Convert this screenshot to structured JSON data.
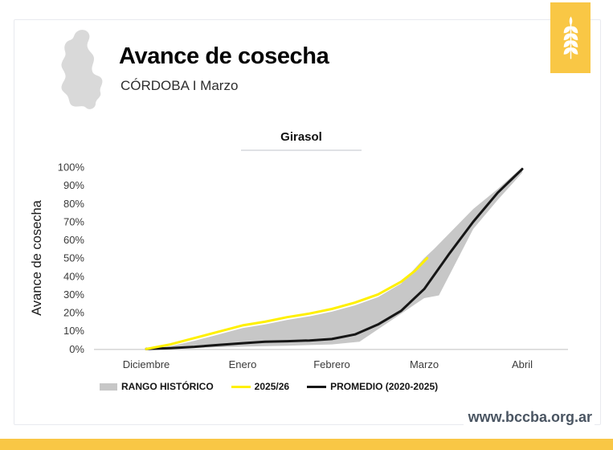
{
  "header": {
    "title": "Avance de cosecha",
    "subtitle": "CÓRDOBA I Marzo",
    "map_icon": "cordoba-province-silhouette",
    "logo_icon": "wheat-ear-icon"
  },
  "footer": {
    "website": "www.bccba.org.ar"
  },
  "colors": {
    "brand_yellow": "#f9c745",
    "band_gray": "#c7c7c7",
    "series_2025_color": "#fff000",
    "series_avg_color": "#161616",
    "axis_text": "#3a3a3a",
    "baseline_gray": "#d8d8d8",
    "map_gray": "#d9d9d9",
    "footer_text": "#4a5562"
  },
  "chart_data": {
    "type": "line",
    "title": "Girasol",
    "ylabel": "Avance de cosecha",
    "x_categories": [
      "Diciembre",
      "Enero",
      "Febrero",
      "Marzo",
      "Abril"
    ],
    "yticks": [
      "0%",
      "10%",
      "20%",
      "30%",
      "40%",
      "50%",
      "60%",
      "70%",
      "80%",
      "90%",
      "100%"
    ],
    "ylim": [
      0,
      100
    ],
    "grid": false,
    "legend_position": "bottom",
    "band": {
      "name": "RANGO HISTÓRICO",
      "color": "#c7c7c7",
      "upper": [
        [
          0,
          0
        ],
        [
          0.25,
          1.5
        ],
        [
          0.5,
          4.5
        ],
        [
          0.75,
          8
        ],
        [
          1,
          11.5
        ],
        [
          1.25,
          13.5
        ],
        [
          1.5,
          16
        ],
        [
          1.75,
          18
        ],
        [
          2,
          20.5
        ],
        [
          2.25,
          24
        ],
        [
          2.5,
          28.5
        ],
        [
          2.75,
          36
        ],
        [
          3,
          50
        ],
        [
          3.1,
          55
        ],
        [
          3.5,
          77
        ],
        [
          3.75,
          88
        ],
        [
          4,
          100
        ]
      ],
      "lower": [
        [
          0,
          0
        ],
        [
          0.5,
          0.6
        ],
        [
          1,
          1.3
        ],
        [
          1.5,
          1.8
        ],
        [
          2,
          2.5
        ],
        [
          2.3,
          4
        ],
        [
          3,
          28
        ],
        [
          3.15,
          29.5
        ],
        [
          3.5,
          66
        ],
        [
          3.75,
          82
        ],
        [
          4,
          97
        ]
      ]
    },
    "series": [
      {
        "name": "2025/26",
        "color": "#fff000",
        "points": [
          [
            0,
            0
          ],
          [
            0.25,
            2.5
          ],
          [
            0.5,
            6
          ],
          [
            0.75,
            9.5
          ],
          [
            1,
            13
          ],
          [
            1.25,
            15
          ],
          [
            1.5,
            17.5
          ],
          [
            1.75,
            19.5
          ],
          [
            2,
            22
          ],
          [
            2.25,
            25.5
          ],
          [
            2.5,
            30
          ],
          [
            2.75,
            37
          ],
          [
            2.9,
            43
          ],
          [
            3.03,
            50
          ]
        ]
      },
      {
        "name": "PROMEDIO (2020-2025)",
        "color": "#161616",
        "points": [
          [
            0,
            0
          ],
          [
            0.25,
            0.5
          ],
          [
            0.5,
            1.2
          ],
          [
            0.75,
            2.2
          ],
          [
            1,
            3.2
          ],
          [
            1.25,
            4
          ],
          [
            1.5,
            4.3
          ],
          [
            1.75,
            4.7
          ],
          [
            2,
            5.5
          ],
          [
            2.25,
            8
          ],
          [
            2.5,
            13.5
          ],
          [
            2.75,
            21
          ],
          [
            3,
            33
          ],
          [
            3.25,
            52
          ],
          [
            3.5,
            70
          ],
          [
            3.75,
            86
          ],
          [
            4,
            99
          ]
        ]
      }
    ]
  }
}
